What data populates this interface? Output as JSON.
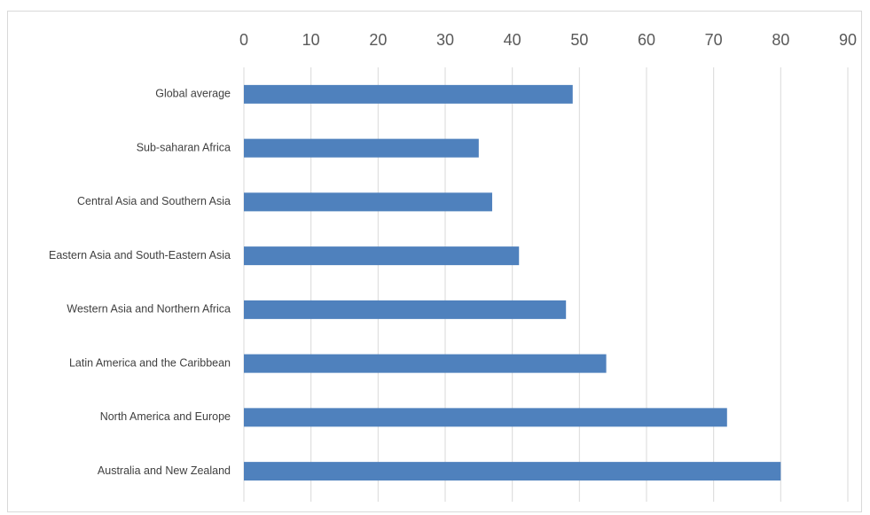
{
  "chart_data": {
    "type": "bar",
    "orientation": "horizontal",
    "categories": [
      "Global average",
      "Sub-saharan Africa",
      "Central Asia and Southern Asia",
      "Eastern Asia and South-Eastern Asia",
      "Western Asia and Northern Africa",
      "Latin America and the Caribbean",
      "North America and Europe",
      "Australia and New Zealand"
    ],
    "values": [
      49,
      35,
      37,
      41,
      48,
      54,
      72,
      80
    ],
    "color": "#4f81bd",
    "xlim": [
      0,
      90
    ],
    "xticks": [
      0,
      10,
      20,
      30,
      40,
      50,
      60,
      70,
      80,
      90
    ],
    "grid": true
  }
}
